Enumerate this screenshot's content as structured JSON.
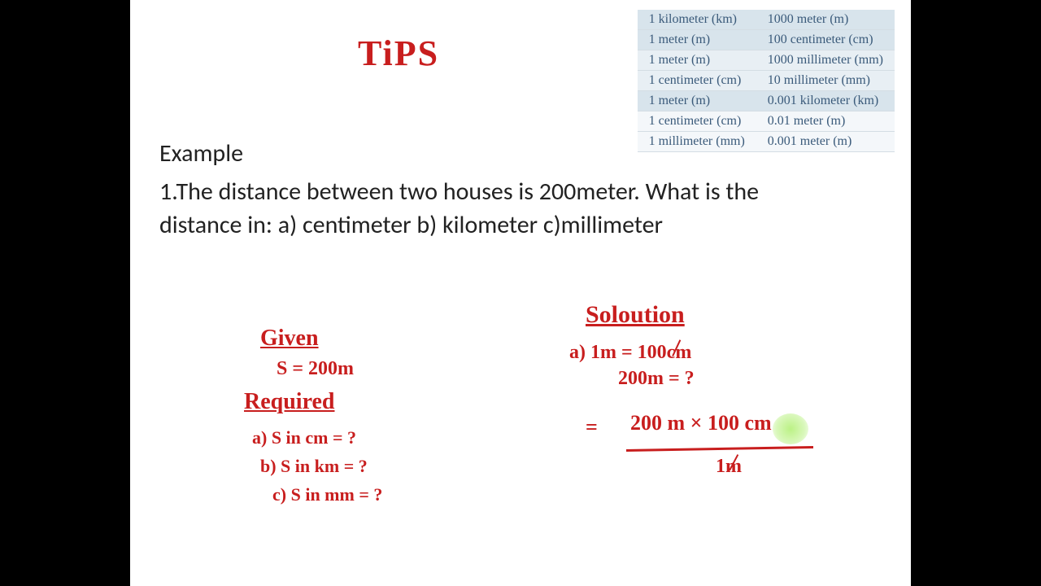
{
  "table": {
    "rows": [
      {
        "left": "1 kilometer (km)",
        "right": "1000 meter (m)"
      },
      {
        "left": "1 meter (m)",
        "right": "100 centimeter (cm)"
      },
      {
        "left": "1 meter (m)",
        "right": "1000 millimeter (mm)"
      },
      {
        "left": "1 centimeter (cm)",
        "right": "10 millimeter (mm)"
      },
      {
        "left": "1 meter (m)",
        "right": "0.001 kilometer (km)"
      },
      {
        "left": "1 centimeter (cm)",
        "right": "0.01 meter (m)"
      },
      {
        "left": "1 millimeter (mm)",
        "right": "0.001 meter (m)"
      }
    ],
    "bands": [
      "band-light",
      "band-light",
      "band-mid",
      "band-mid",
      "band-light",
      "band-white",
      "band-white"
    ]
  },
  "heading": "Example",
  "problem": "1.The distance between two houses is 200meter. What is the distance in: a) centimeter  b) kilometer c)millimeter",
  "hw": {
    "tips": "TiPS",
    "given_head": "Given",
    "given_val": "S = 200m",
    "req_head": "Required",
    "req_a": "a)   S in cm = ?",
    "req_b": "b)  S in km = ?",
    "req_c": "c)  S in mm = ?",
    "sol_head": "Soloution",
    "sol_a1": "a)   1m = 100cm",
    "sol_a2": "200m = ?",
    "sol_eq": "=",
    "sol_calc": "200 m × 100 cm",
    "sol_denom": "1m"
  },
  "colors": {
    "hand": "#c81e1e",
    "table_text": "#3a5a7a",
    "highlight": "#b4f078"
  }
}
